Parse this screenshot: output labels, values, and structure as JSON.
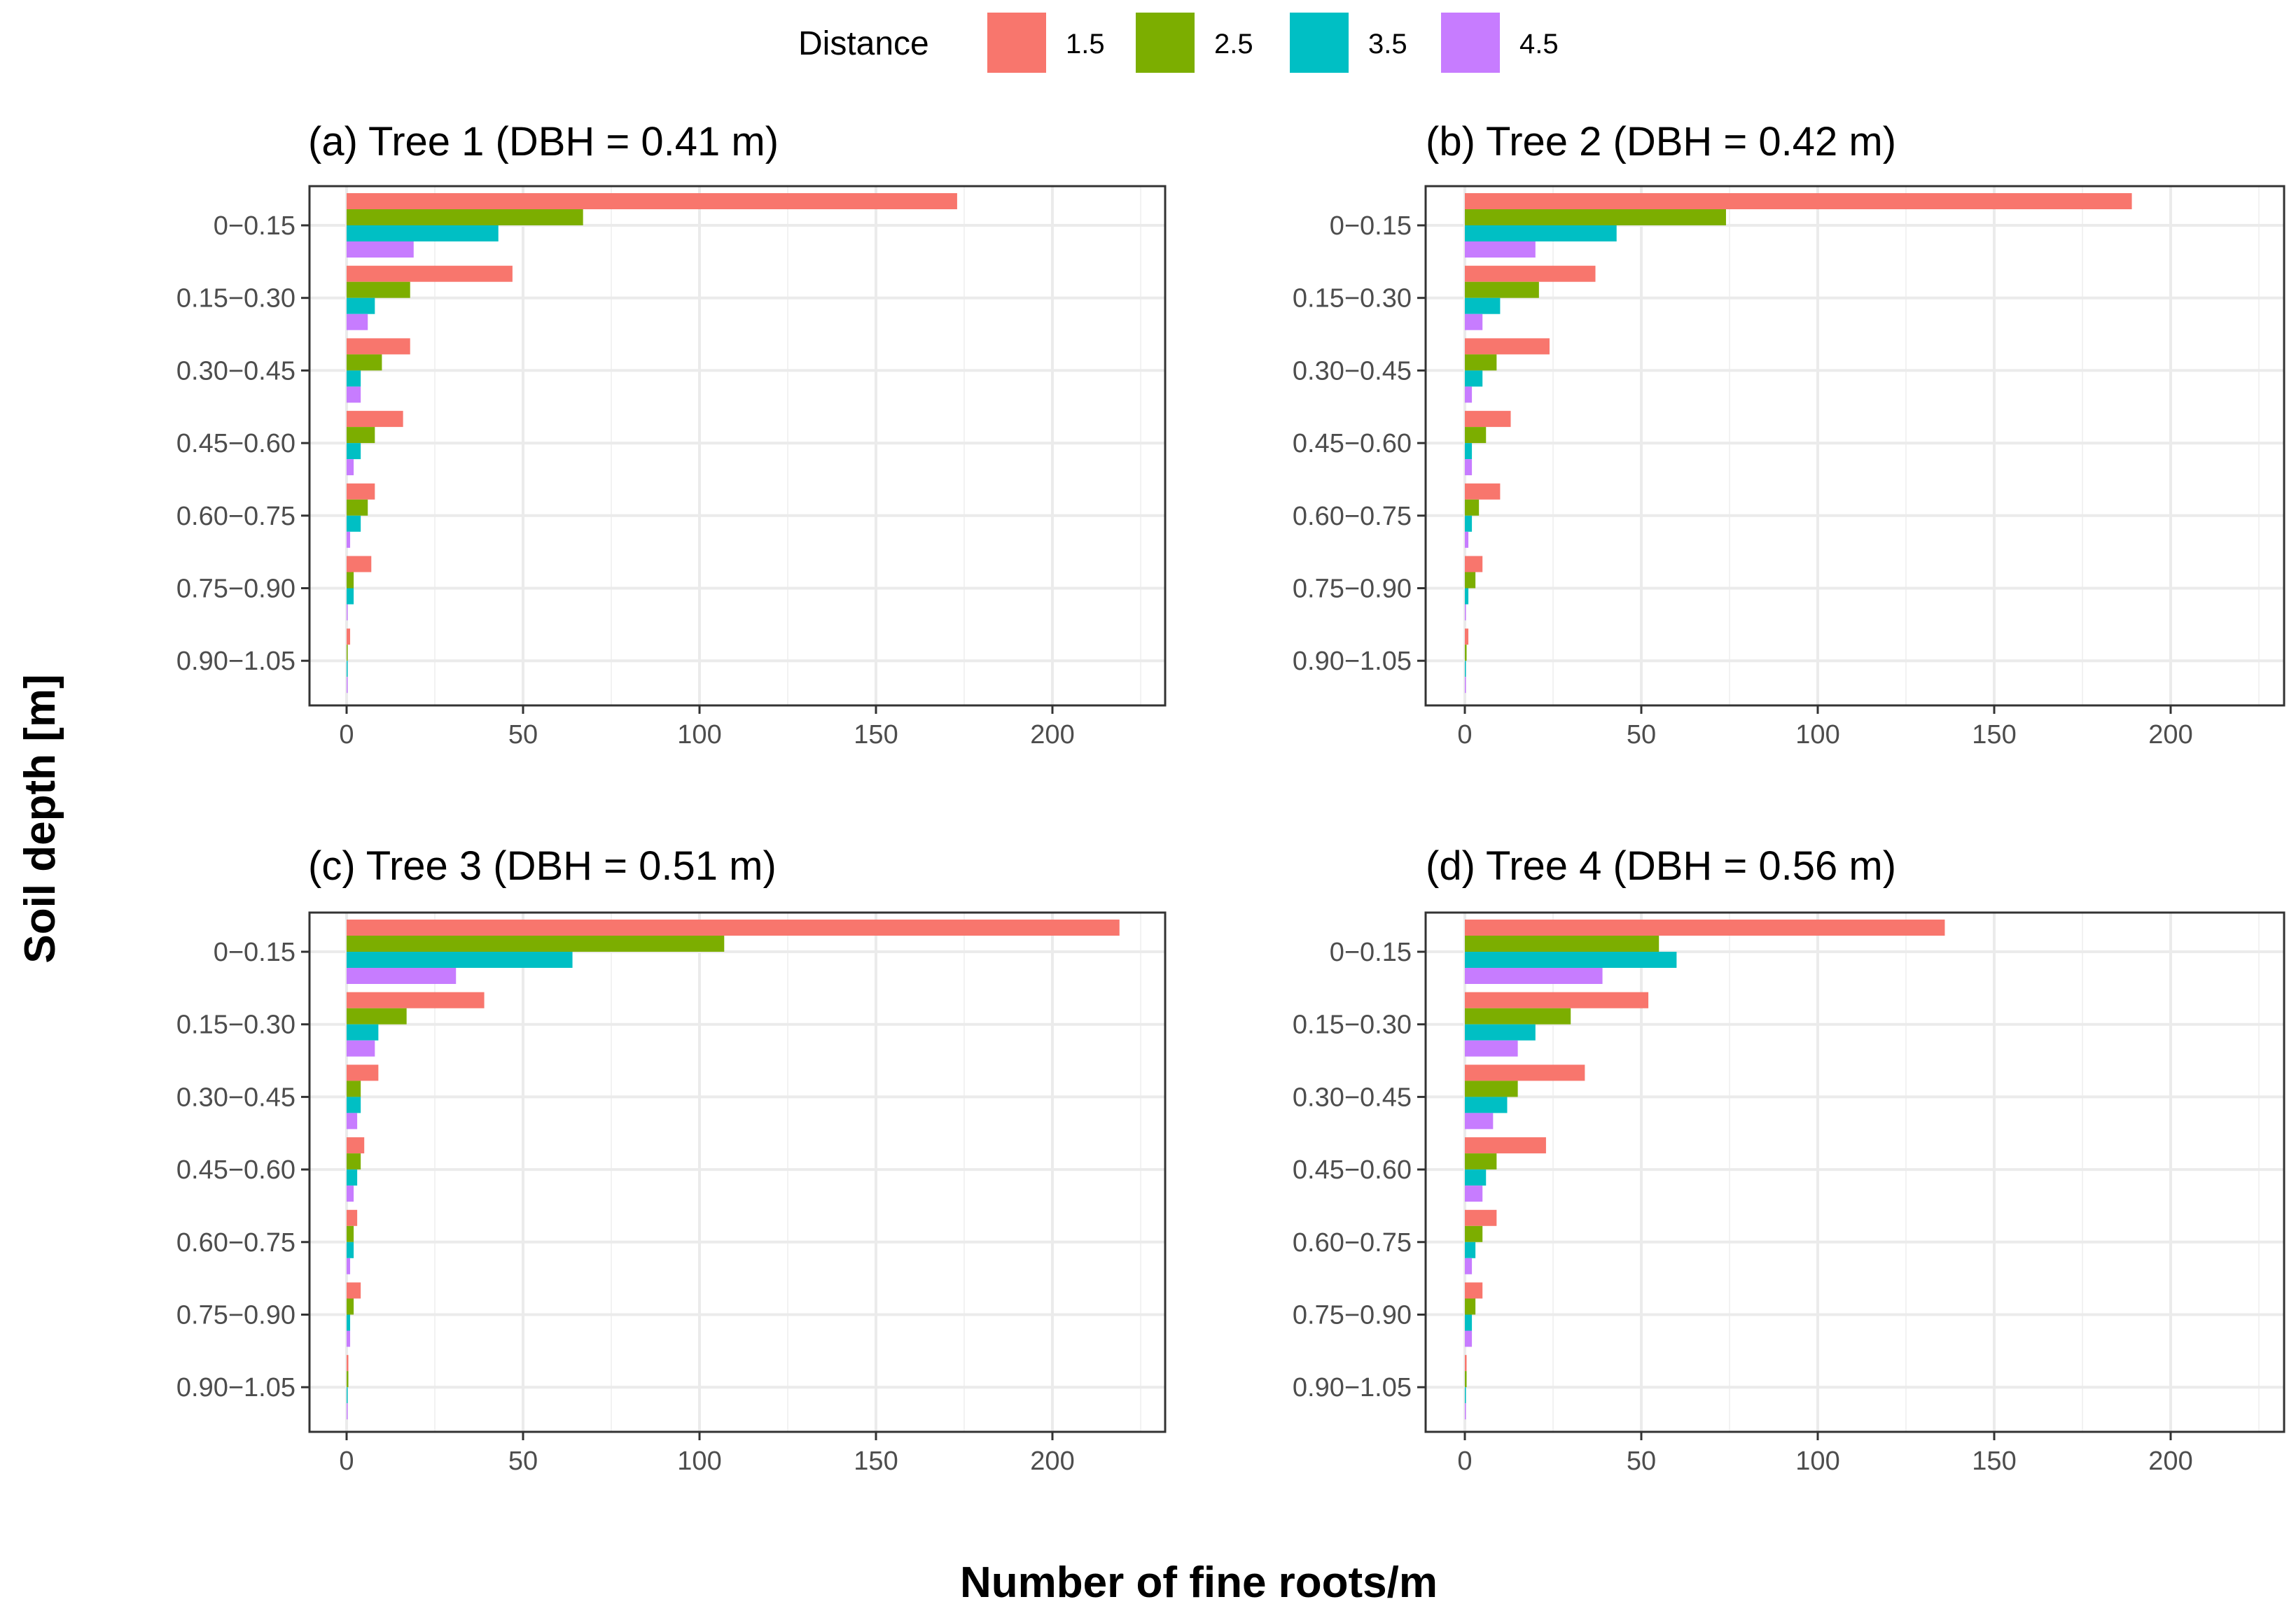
{
  "chart_data": {
    "type": "bar",
    "orientation": "horizontal",
    "xlabel": "Number of fine roots/m",
    "ylabel": "Soil depth [m]",
    "xlim": [
      -10,
      233
    ],
    "xticks": [
      "0",
      "50",
      "100",
      "150",
      "200"
    ],
    "grid": true,
    "legend": {
      "title": "Distance",
      "placement": "top",
      "entries": [
        {
          "label": "1.5",
          "color": "#F8766D"
        },
        {
          "label": "2.5",
          "color": "#7CAE00"
        },
        {
          "label": "3.5",
          "color": "#00BFC4"
        },
        {
          "label": "4.5",
          "color": "#C77CFF"
        }
      ]
    },
    "categories": [
      "0−0.15",
      "0.15−0.30",
      "0.30−0.45",
      "0.45−0.60",
      "0.60−0.75",
      "0.75−0.90",
      "0.90−1.05"
    ],
    "panels": [
      {
        "title": "(a) Tree 1 (DBH = 0.41 m)",
        "series": [
          {
            "name": "1.5",
            "values": [
              173,
              47,
              18,
              16,
              8,
              7,
              1
            ]
          },
          {
            "name": "2.5",
            "values": [
              67,
              18,
              10,
              8,
              6,
              2,
              0
            ]
          },
          {
            "name": "3.5",
            "values": [
              43,
              8,
              4,
              4,
              4,
              2,
              0
            ]
          },
          {
            "name": "4.5",
            "values": [
              19,
              6,
              4,
              2,
              1,
              0,
              0
            ]
          }
        ]
      },
      {
        "title": "(b) Tree 2 (DBH = 0.42 m)",
        "series": [
          {
            "name": "1.5",
            "values": [
              189,
              37,
              24,
              13,
              10,
              5,
              1
            ]
          },
          {
            "name": "2.5",
            "values": [
              74,
              21,
              9,
              6,
              4,
              3,
              0.5
            ]
          },
          {
            "name": "3.5",
            "values": [
              43,
              10,
              5,
              2,
              2,
              1,
              0
            ]
          },
          {
            "name": "4.5",
            "values": [
              20,
              5,
              2,
              2,
              1,
              0,
              0
            ]
          }
        ]
      },
      {
        "title": "(c) Tree 3 (DBH = 0.51 m)",
        "series": [
          {
            "name": "1.5",
            "values": [
              219,
              39,
              9,
              5,
              3,
              4,
              0.5
            ]
          },
          {
            "name": "2.5",
            "values": [
              107,
              17,
              4,
              4,
              2,
              2,
              0.5
            ]
          },
          {
            "name": "3.5",
            "values": [
              64,
              9,
              4,
              3,
              2,
              1,
              0
            ]
          },
          {
            "name": "4.5",
            "values": [
              31,
              8,
              3,
              2,
              1,
              1,
              0
            ]
          }
        ]
      },
      {
        "title": "(d) Tree 4 (DBH = 0.56 m)",
        "series": [
          {
            "name": "1.5",
            "values": [
              136,
              52,
              34,
              23,
              9,
              5,
              0.5
            ]
          },
          {
            "name": "2.5",
            "values": [
              55,
              30,
              15,
              9,
              5,
              3,
              0.5
            ]
          },
          {
            "name": "3.5",
            "values": [
              60,
              20,
              12,
              6,
              3,
              2,
              0
            ]
          },
          {
            "name": "4.5",
            "values": [
              39,
              15,
              8,
              5,
              2,
              2,
              0
            ]
          }
        ]
      }
    ]
  }
}
